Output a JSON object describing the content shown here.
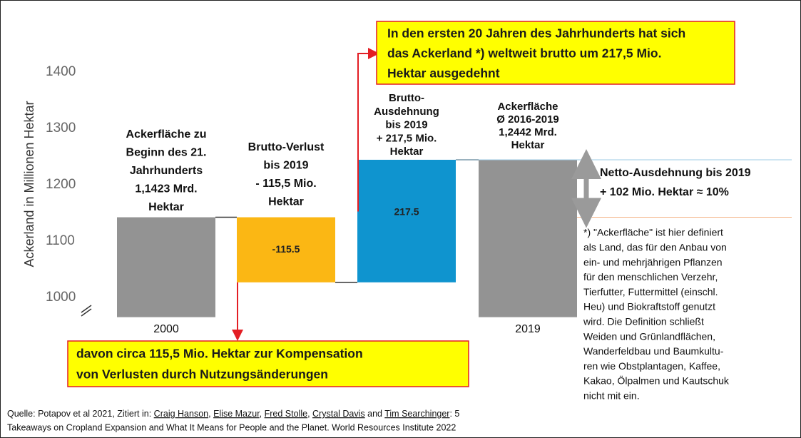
{
  "chart_data": {
    "type": "waterfall",
    "ylabel": "Ackerland in Millionen Hektar",
    "categories": [
      "2000",
      null,
      null,
      "2019"
    ],
    "values": [
      1142.3,
      -115.5,
      217.5,
      1244.2
    ],
    "measure": [
      "absolute",
      "relative",
      "relative",
      "total"
    ],
    "colors": [
      "#939393",
      "#fbb714",
      "#0f94cf",
      "#939393"
    ],
    "ylim": [
      965,
      1440
    ],
    "yticks": [
      1000,
      1100,
      1200,
      1300,
      1400
    ],
    "bar_titles": [
      [
        "Ackerfläche zu",
        "Beginn des 21.",
        "Jahrhunderts",
        "1,1423 Mrd.",
        "Hektar"
      ],
      [
        "Brutto-Verlust",
        "bis 2019",
        "- 115,5 Mio.",
        "Hektar"
      ],
      [
        "Brutto-",
        "Ausdehnung",
        "bis 2019",
        "+ 217,5 Mio.",
        "Hektar"
      ],
      [
        "Ackerfläche",
        "Ø 2016-2019",
        "1,2442 Mrd.",
        "Hektar"
      ]
    ],
    "callout_top": [
      "In den ersten 20 Jahren des Jahrhunderts hat sich",
      "das Ackerland *) weltweit brutto um 217,5 Mio.",
      "Hektar ausgedehnt"
    ],
    "callout_bottom": [
      "davon circa 115,5 Mio. Hektar zur Kompensation",
      "von Verlusten durch Nutzungsänderungen"
    ],
    "net_annotation": [
      "Netto-Ausdehnung bis 2019",
      "+ 102 Mio. Hektar ≈ 10%"
    ],
    "note": [
      "*) \"Ackerfläche\" ist hier definiert",
      "als Land, das für den Anbau von",
      "ein- und mehrjährigen Pflanzen",
      "für den menschlichen Verzehr,",
      "Tierfutter, Futtermittel (einschl.",
      "Heu) und Biokraftstoff genutzt",
      "wird. Die Definition schließt",
      "Weiden und Grünlandflächen,",
      "Wanderfeldbau und Baumkultu-",
      "ren wie Obstplantagen, Kaffee,",
      "Kakao, Ölpalmen und Kautschuk",
      "nicht mit ein."
    ],
    "source_line1": [
      "Quelle: Potapov et al 2021, Zitiert in: ",
      "Craig Hanson",
      ", ",
      "Elise Mazur",
      ", ",
      "Fred Stolle",
      ", ",
      "Crystal Davis",
      " and ",
      "Tim Searchinger",
      ": 5"
    ],
    "source_line2": "Takeaways on Cropland Expansion and What It Means for People and the Planet. World Resources Institute 2022"
  }
}
